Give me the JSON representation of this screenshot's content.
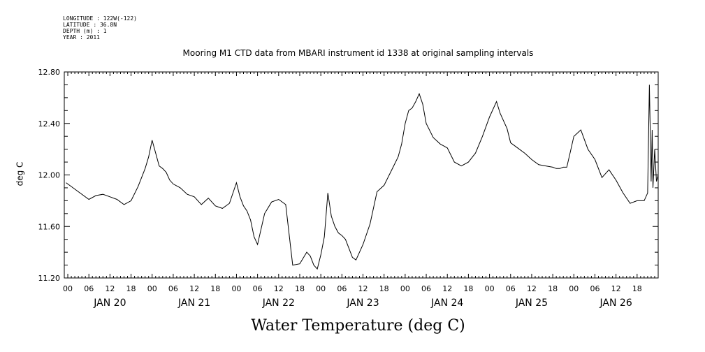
{
  "metadata": {
    "longitude": "LONGITUDE : 122W(-122)",
    "latitude": "LATITUDE : 36.8N",
    "depth": "DEPTH (m) : 1",
    "year": "YEAR : 2011"
  },
  "chart_data": {
    "type": "line",
    "title": "Mooring M1 CTD data from MBARI instrument id 1338 at original sampling intervals",
    "subtitle": "Water Temperature (deg C)",
    "ylabel": "deg C",
    "xlabel": "",
    "ylim": [
      11.2,
      12.8
    ],
    "xlim_hours": [
      -1,
      168
    ],
    "y_ticks": [
      "11.20",
      "11.60",
      "12.00",
      "12.40",
      "12.80"
    ],
    "x_hour_ticks": [
      "00",
      "06",
      "12",
      "18",
      "00",
      "06",
      "12",
      "18",
      "00",
      "06",
      "12",
      "18",
      "00",
      "06",
      "12",
      "18",
      "00",
      "06",
      "12",
      "18",
      "00",
      "06",
      "12",
      "18",
      "00",
      "06",
      "12",
      "18"
    ],
    "day_labels": [
      "JAN 20",
      "JAN 21",
      "JAN 22",
      "JAN 23",
      "JAN 24",
      "JAN 25",
      "JAN 26"
    ],
    "grid": false,
    "series": [
      {
        "x_hours": [
          -0.5,
          1,
          3,
          6,
          8,
          10,
          12,
          14,
          16,
          18,
          20,
          22,
          23,
          24,
          25,
          26,
          27,
          28,
          29,
          30,
          32,
          34,
          36,
          38,
          40,
          42,
          44,
          46,
          48,
          49,
          50,
          51,
          52,
          53,
          54,
          56,
          58,
          60,
          62,
          64,
          66,
          68,
          69,
          70,
          71,
          72,
          73,
          74,
          75,
          76,
          77,
          78,
          79,
          80,
          81,
          82,
          84,
          86,
          88,
          90,
          92,
          94,
          95,
          96,
          97,
          98,
          99,
          100,
          101,
          102,
          104,
          106,
          108,
          110,
          112,
          114,
          116,
          118,
          120,
          122,
          123,
          124,
          125,
          126,
          128,
          130,
          132,
          134,
          136,
          138,
          139,
          140,
          141,
          142,
          143,
          144,
          146,
          148,
          150,
          152,
          154,
          156,
          158,
          160,
          162,
          164,
          165,
          165.5,
          166,
          166.3,
          166.5,
          167,
          167.5,
          168
        ],
        "values": [
          11.94,
          11.91,
          11.87,
          11.81,
          11.84,
          11.85,
          11.83,
          11.81,
          11.77,
          11.8,
          11.91,
          12.05,
          12.14,
          12.27,
          12.17,
          12.07,
          12.05,
          12.02,
          11.96,
          11.93,
          11.9,
          11.85,
          11.83,
          11.77,
          11.82,
          11.76,
          11.74,
          11.78,
          11.94,
          11.83,
          11.76,
          11.72,
          11.65,
          11.52,
          11.46,
          11.7,
          11.79,
          11.81,
          11.77,
          11.3,
          11.31,
          11.4,
          11.37,
          11.3,
          11.27,
          11.38,
          11.52,
          11.86,
          11.68,
          11.6,
          11.55,
          11.53,
          11.5,
          11.43,
          11.36,
          11.34,
          11.46,
          11.62,
          11.87,
          11.92,
          12.03,
          12.14,
          12.24,
          12.4,
          12.5,
          12.52,
          12.57,
          12.63,
          12.55,
          12.4,
          12.29,
          12.24,
          12.21,
          12.1,
          12.07,
          12.1,
          12.17,
          12.3,
          12.45,
          12.57,
          12.48,
          12.42,
          12.36,
          12.25,
          12.21,
          12.17,
          12.12,
          12.08,
          12.07,
          12.06,
          12.05,
          12.05,
          12.06,
          12.06,
          12.18,
          12.3,
          12.35,
          12.2,
          12.12,
          11.98,
          12.04,
          11.96,
          11.86,
          11.78,
          11.8,
          11.8,
          11.86,
          12.7,
          11.95,
          12.35,
          11.9,
          12.2,
          11.95,
          12.0
        ]
      }
    ]
  }
}
